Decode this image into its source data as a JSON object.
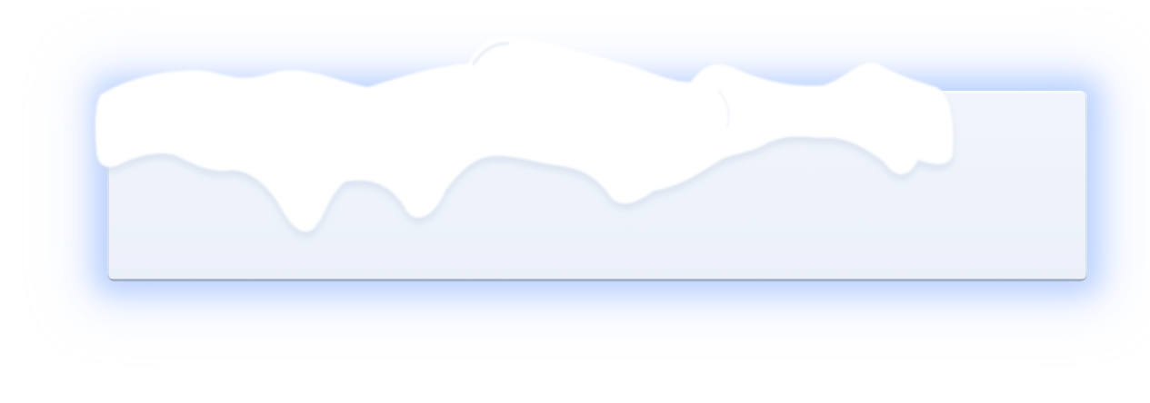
{
  "scene": {
    "description_free": true,
    "colors": {
      "background": "#ffffff",
      "panel_fill": "#eef3fb",
      "panel_edge": "#a8b4c8",
      "glow": "#9fbcff",
      "snow": "#ffffff",
      "snow_shadow": "#dfe6f2"
    },
    "icons": [
      "snow-cap-decoration"
    ]
  }
}
